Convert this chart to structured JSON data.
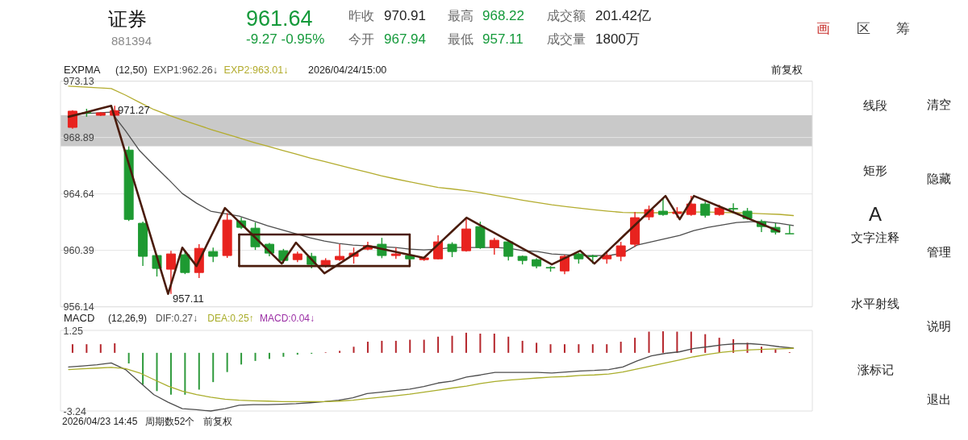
{
  "chart_data": [
    {
      "type": "candlestick",
      "title": "证券",
      "subtitle": "881394",
      "categories": [
        null,
        null,
        null,
        null,
        null,
        null,
        null,
        null,
        null,
        null,
        null,
        null,
        null,
        null,
        null,
        null,
        null,
        null,
        null,
        null,
        null,
        null,
        null,
        null,
        null,
        null,
        null,
        null,
        null,
        null,
        null,
        null,
        null,
        null,
        null,
        null,
        null,
        null,
        null,
        null,
        null,
        null,
        null,
        null,
        null,
        null,
        null,
        null,
        null,
        null,
        null,
        null
      ],
      "ohlc": [
        [
          969.65,
          970.95,
          969.55,
          970.87
        ],
        [
          970.76,
          971.05,
          970.45,
          970.72
        ],
        [
          970.56,
          970.8,
          970.5,
          970.74
        ],
        [
          970.56,
          971.27,
          970.5,
          970.91
        ],
        [
          967.94,
          968.22,
          962.6,
          962.72
        ],
        [
          962.43,
          962.55,
          959.21,
          959.94
        ],
        [
          960.0,
          960.05,
          958.42,
          959.03
        ],
        [
          958.97,
          960.36,
          957.11,
          960.12
        ],
        [
          960.06,
          960.3,
          958.6,
          958.72
        ],
        [
          958.72,
          960.85,
          958.3,
          960.54
        ],
        [
          960.3,
          960.6,
          959.51,
          959.94
        ],
        [
          960.0,
          963.2,
          959.82,
          962.67
        ],
        [
          962.61,
          962.85,
          962.0,
          962.12
        ],
        [
          962.06,
          962.49,
          960.42,
          960.66
        ],
        [
          960.85,
          960.95,
          959.94,
          960.18
        ],
        [
          960.36,
          960.5,
          959.4,
          959.63
        ],
        [
          959.69,
          960.3,
          959.5,
          960.12
        ],
        [
          959.94,
          960.2,
          959.03,
          959.33
        ],
        [
          959.27,
          959.8,
          959.1,
          959.63
        ],
        [
          959.69,
          960.85,
          959.6,
          959.94
        ],
        [
          959.94,
          960.6,
          959.39,
          960.18
        ],
        [
          960.48,
          961.03,
          960.4,
          960.73
        ],
        [
          960.85,
          961.33,
          959.8,
          960.0
        ],
        [
          960.0,
          960.6,
          959.75,
          960.12
        ],
        [
          960.0,
          960.1,
          959.65,
          959.75
        ],
        [
          959.69,
          959.9,
          959.6,
          959.82
        ],
        [
          959.75,
          961.52,
          959.7,
          961.03
        ],
        [
          960.85,
          961.0,
          959.88,
          960.3
        ],
        [
          960.36,
          962.85,
          960.3,
          962.0
        ],
        [
          962.18,
          962.55,
          960.5,
          960.6
        ],
        [
          960.6,
          961.33,
          960.06,
          961.15
        ],
        [
          961.03,
          961.1,
          959.63,
          959.94
        ],
        [
          959.94,
          960.0,
          959.33,
          959.63
        ],
        [
          959.69,
          959.8,
          959.03,
          959.21
        ],
        [
          959.1,
          959.2,
          958.78,
          959.06
        ],
        [
          958.84,
          960.05,
          958.6,
          959.94
        ],
        [
          960.12,
          960.2,
          959.39,
          959.75
        ],
        [
          959.96,
          960.06,
          959.39,
          959.92
        ],
        [
          959.75,
          960.24,
          959.39,
          960.0
        ],
        [
          959.94,
          961.03,
          959.57,
          960.73
        ],
        [
          960.85,
          963.28,
          960.66,
          962.85
        ],
        [
          962.91,
          963.76,
          962.67,
          963.46
        ],
        [
          963.34,
          964.3,
          963.0,
          963.09
        ],
        [
          963.16,
          963.64,
          962.85,
          963.28
        ],
        [
          963.09,
          964.49,
          963.0,
          963.88
        ],
        [
          963.88,
          964.05,
          962.85,
          963.03
        ],
        [
          963.09,
          963.82,
          963.0,
          963.58
        ],
        [
          963.54,
          963.94,
          963.21,
          963.5
        ],
        [
          963.34,
          963.58,
          962.7,
          962.79
        ],
        [
          962.55,
          962.7,
          961.76,
          962.18
        ],
        [
          962.12,
          962.43,
          961.58,
          961.76
        ],
        [
          961.64,
          962.3,
          961.64,
          961.64
        ]
      ],
      "colors": [
        "#e8231f",
        "#1e9a32",
        "#e8231f",
        "#e8231f",
        "#1e9a32",
        "#1e9a32",
        "#1e9a32",
        "#e8231f",
        "#1e9a32",
        "#e8231f",
        "#1e9a32",
        "#e8231f",
        "#1e9a32",
        "#1e9a32",
        "#1e9a32",
        "#1e9a32",
        "#e8231f",
        "#1e9a32",
        "#e8231f",
        "#e8231f",
        "#e8231f",
        "#e8231f",
        "#1e9a32",
        "#e8231f",
        "#1e9a32",
        "#e8231f",
        "#e8231f",
        "#1e9a32",
        "#e8231f",
        "#1e9a32",
        "#e8231f",
        "#1e9a32",
        "#1e9a32",
        "#1e9a32",
        "#1e9a32",
        "#e8231f",
        "#1e9a32",
        "#1e9a32",
        "#e8231f",
        "#e8231f",
        "#e8231f",
        "#e8231f",
        "#1e9a32",
        "#e8231f",
        "#e8231f",
        "#1e9a32",
        "#e8231f",
        "#1e9a32",
        "#1e9a32",
        "#1e9a32",
        "#1e9a32",
        "#1e9a32"
      ],
      "series": [
        {
          "name": "EXP1:962.26↓",
          "type": "line",
          "color": "#4d4d4d",
          "values": [
            970.68,
            970.68,
            970.74,
            970.8,
            969.4,
            967.89,
            966.8,
            965.76,
            964.67,
            963.94,
            963.34,
            963.15,
            962.97,
            962.61,
            962.24,
            961.94,
            961.64,
            961.33,
            961.09,
            960.91,
            960.79,
            960.73,
            960.67,
            960.6,
            960.48,
            960.42,
            960.48,
            960.6,
            null,
            null,
            960.6,
            960.54,
            960.36,
            960.3,
            960.12,
            960.06,
            960.0,
            960.0,
            960.0,
            960.18,
            960.79,
            961.03,
            961.27,
            961.52,
            961.88,
            962.12,
            962.3,
            962.49,
            962.55,
            962.55,
            962.43,
            962.26
          ]
        },
        {
          "name": "EXP2:963.01↓",
          "type": "line",
          "color": "#b3ac2e",
          "values": [
            972.75,
            972.69,
            972.63,
            972.57,
            972.08,
            971.53,
            970.99,
            970.59,
            970.21,
            969.86,
            969.5,
            969.18,
            968.85,
            968.53,
            968.23,
            967.93,
            967.65,
            967.34,
            967.08,
            966.81,
            966.54,
            966.28,
            966.01,
            965.77,
            965.55,
            965.34,
            965.13,
            965.01,
            964.88,
            964.73,
            964.54,
            964.35,
            964.16,
            963.99,
            963.82,
            963.68,
            963.56,
            963.44,
            963.34,
            963.24,
            963.22,
            963.22,
            963.22,
            963.28,
            963.28,
            963.28,
            963.25,
            963.22,
            963.18,
            963.14,
            963.1,
            963.01
          ]
        },
        {
          "type": "line",
          "color": "#4a1c0c",
          "values": [
            970.45,
            970.72,
            971.0,
            971.27,
            967.73,
            964.19,
            960.65,
            957.11,
            960.59,
            959.21,
            961.4,
            963.58,
            962.53,
            961.49,
            960.44,
            959.39,
            960.97,
            959.82,
            958.66,
            959.35,
            960.04,
            960.73,
            960.5,
            960.28,
            960.05,
            959.82,
            960.83,
            961.84,
            962.85,
            962.26,
            961.68,
            961.09,
            960.5,
            959.92,
            959.33,
            959.85,
            960.36,
            959.39,
            960.41,
            961.43,
            962.45,
            963.47,
            964.49,
            962.73,
            964.49,
            964.05,
            963.6,
            963.16,
            962.71,
            962.27,
            961.82,
            null
          ]
        },
        {
          "type": "line",
          "color": "#4a1c0c",
          "values": [
            null,
            null,
            null,
            null,
            null,
            null,
            null,
            null,
            null,
            null,
            null,
            null,
            961.58,
            961.58,
            961.58,
            961.58,
            961.58,
            961.58,
            961.58,
            961.58,
            961.58,
            961.58,
            961.58,
            961.58,
            961.58,
            null,
            null,
            null,
            null,
            null,
            null,
            null,
            null,
            null,
            null,
            null,
            null,
            null,
            null,
            null,
            null,
            null,
            null,
            null,
            null,
            null,
            null,
            null,
            null,
            null,
            null,
            null
          ],
          "errors": [
            null,
            null,
            null,
            null,
            null,
            null,
            null,
            null,
            null,
            null,
            null,
            null,
            [
              959.21,
              961.58
            ],
            null,
            null,
            null,
            null,
            null,
            null,
            null,
            null,
            null,
            null,
            null,
            [
              959.21,
              961.58
            ],
            null,
            null,
            null,
            null,
            null,
            null,
            null,
            null,
            null,
            null,
            null,
            null,
            null,
            null,
            null,
            null,
            null,
            null,
            null,
            null,
            null,
            null,
            null,
            null,
            null,
            null,
            null
          ]
        },
        {
          "type": "line",
          "color": "#4a1c0c",
          "values": [
            null,
            null,
            null,
            null,
            null,
            null,
            null,
            null,
            null,
            null,
            null,
            null,
            959.21,
            959.21,
            959.21,
            959.21,
            959.21,
            959.21,
            959.21,
            959.21,
            959.21,
            959.21,
            959.21,
            959.21,
            959.21,
            null,
            null,
            null,
            null,
            null,
            null,
            null,
            null,
            null,
            null,
            null,
            null,
            null,
            null,
            null,
            null,
            null,
            null,
            null,
            null,
            null,
            null,
            null,
            null,
            null,
            null,
            null
          ]
        }
      ],
      "ylim": [
        956.14,
        973.13
      ],
      "yticks": [
        973.13,
        968.89,
        964.64,
        960.39,
        956.14
      ],
      "grid": "y",
      "legend": "top left",
      "tick_labels": "y",
      "bands": [
        {
          "axis": "y",
          "from": 968.22,
          "to": 970.56,
          "color": "#c9c9c9"
        }
      ],
      "annotations": [
        "961.64",
        "-9.27 -0.95%",
        "昨收",
        "970.91",
        "今开",
        "967.94",
        "最高",
        "968.22",
        "最低",
        "957.11",
        "成交额",
        "201.42亿",
        "成交量",
        "1800万",
        "画",
        "区",
        "筹",
        "EXPMA",
        "(12,50)",
        "2026/04/24/15:00",
        "前复权",
        "971.27",
        "957.11"
      ]
    },
    {
      "type": "bar",
      "categories": [
        null,
        null,
        null,
        null,
        null,
        null,
        null,
        null,
        null,
        null,
        null,
        null,
        null,
        null,
        null,
        null,
        null,
        null,
        null,
        null,
        null,
        null,
        null,
        null,
        null,
        null,
        null,
        null,
        null,
        null,
        null,
        null,
        null,
        null,
        null,
        null,
        null,
        null,
        null,
        null,
        null,
        null,
        null,
        null,
        null,
        null,
        null,
        null,
        null,
        null,
        null,
        null
      ],
      "series": [
        {
          "type": "bar",
          "colors": [
            "#b5262c",
            "#b5262c",
            "#b5262c",
            "#b5262c",
            "#2e9a3c",
            "#2e9a3c",
            "#2e9a3c",
            "#2e9a3c",
            "#2e9a3c",
            "#2e9a3c",
            "#2e9a3c",
            "#2e9a3c",
            "#2e9a3c",
            "#2e9a3c",
            "#2e9a3c",
            "#2e9a3c",
            "#2e9a3c",
            "#2e9a3c",
            "#b5262c",
            "#b5262c",
            "#b5262c",
            "#b5262c",
            "#b5262c",
            "#b5262c",
            "#b5262c",
            "#b5262c",
            "#b5262c",
            "#b5262c",
            "#b5262c",
            "#b5262c",
            "#b5262c",
            "#b5262c",
            "#b5262c",
            "#b5262c",
            "#b5262c",
            "#b5262c",
            "#b5262c",
            "#b5262c",
            "#b5262c",
            "#b5262c",
            "#b5262c",
            "#b5262c",
            "#b5262c",
            "#b5262c",
            "#b5262c",
            "#b5262c",
            "#b5262c",
            "#b5262c",
            "#b5262c",
            "#b5262c",
            "#b5262c",
            "#b5262c"
          ],
          "values": [
            0.48,
            0.48,
            0.48,
            0.53,
            -0.59,
            -1.77,
            -2.13,
            -2.33,
            -2.33,
            -2.05,
            -1.63,
            -1.07,
            -0.65,
            -0.45,
            -0.34,
            -0.22,
            -0.1,
            -0.05,
            0.03,
            0.11,
            0.34,
            0.62,
            0.67,
            0.67,
            0.73,
            0.73,
            0.9,
            0.95,
            1.12,
            1.07,
            1.07,
            0.9,
            0.67,
            0.56,
            0.48,
            0.48,
            0.48,
            0.48,
            0.48,
            0.62,
            0.84,
            1.18,
            1.2,
            1.18,
            1.18,
            1.04,
            0.84,
            0.76,
            0.56,
            0.34,
            0.2,
            0.04
          ]
        },
        {
          "name": "DIF:0.27↓",
          "type": "line",
          "color": "#4d4d4d",
          "values": [
            -0.79,
            -0.73,
            -0.66,
            -0.56,
            -0.93,
            -1.63,
            -2.33,
            -2.75,
            -3.11,
            -3.17,
            -3.24,
            -3.11,
            -2.92,
            -2.89,
            -2.89,
            -2.86,
            -2.83,
            -2.78,
            -2.72,
            -2.64,
            -2.5,
            -2.27,
            -2.19,
            -2.1,
            -2.02,
            -1.88,
            -1.68,
            -1.57,
            -1.35,
            -1.23,
            -1.09,
            -1.09,
            -1.09,
            -1.09,
            -1.12,
            -1.07,
            -1.01,
            -0.98,
            -0.93,
            -0.79,
            -0.45,
            -0.17,
            -0.03,
            0.06,
            0.25,
            0.34,
            0.45,
            0.51,
            0.51,
            0.45,
            0.34,
            0.27
          ]
        },
        {
          "name": "DEA:0.25↑",
          "type": "line",
          "color": "#a9ad2a",
          "values": [
            -0.93,
            -0.89,
            -0.85,
            -0.81,
            -0.88,
            -1.12,
            -1.49,
            -1.85,
            -2.13,
            -2.33,
            -2.47,
            -2.58,
            -2.64,
            -2.67,
            -2.69,
            -2.72,
            -2.72,
            -2.72,
            -2.72,
            -2.69,
            -2.64,
            -2.55,
            -2.47,
            -2.39,
            -2.3,
            -2.19,
            -2.08,
            -1.96,
            -1.85,
            -1.71,
            -1.6,
            -1.52,
            -1.46,
            -1.4,
            -1.35,
            -1.32,
            -1.26,
            -1.23,
            -1.18,
            -1.07,
            -0.9,
            -0.73,
            -0.56,
            -0.39,
            -0.22,
            -0.08,
            0.03,
            0.11,
            0.17,
            0.2,
            0.22,
            0.25
          ]
        }
      ],
      "ylim": [
        -3.24,
        1.25
      ],
      "yticks": [
        1.25,
        -3.24
      ],
      "legend": "top left",
      "tick_labels": "y",
      "annotations": [
        "MACD",
        "(12,26,9)",
        "MACD:0.04↓",
        "2026/04/23 14:45",
        "周期数52个",
        "前复权"
      ]
    },
    {
      "type": "other",
      "annotations": [
        "线段",
        "矩形",
        "A",
        "文字注释",
        "水平射线",
        "涨标记",
        "清空",
        "隐藏",
        "管理",
        "说明",
        "退出"
      ]
    }
  ]
}
